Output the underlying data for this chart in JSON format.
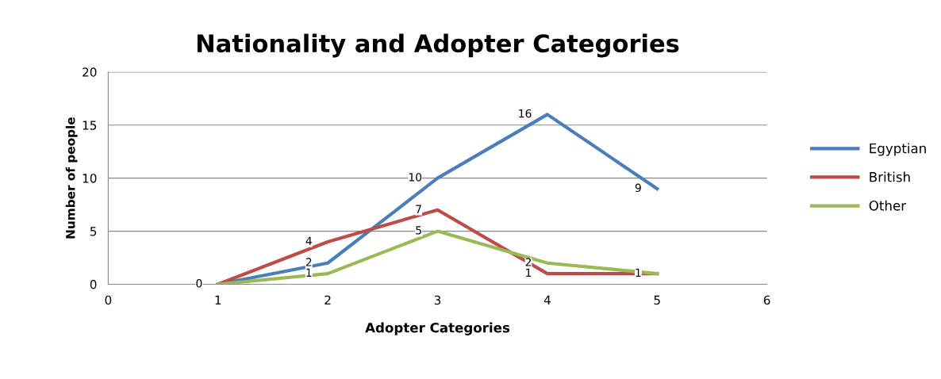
{
  "chart_data": {
    "type": "line",
    "title": "Nationality and Adopter Categories",
    "xlabel": "Adopter Categories",
    "ylabel": "Number of people",
    "x": [
      1,
      2,
      3,
      4,
      5
    ],
    "series": [
      {
        "name": "Egyptian",
        "color": "#4a7ebb",
        "values": [
          0,
          2,
          10,
          16,
          9
        ],
        "value_labels": [
          "0",
          "2",
          "10",
          "16",
          "9"
        ]
      },
      {
        "name": "British",
        "color": "#be4b48",
        "values": [
          0,
          4,
          7,
          1,
          1
        ],
        "value_labels": [
          null,
          "4",
          "7",
          "1",
          "1"
        ]
      },
      {
        "name": "Other",
        "color": "#98b954",
        "values": [
          0,
          1,
          5,
          2,
          1
        ],
        "value_labels": [
          null,
          "1",
          "5",
          "2",
          null
        ]
      }
    ],
    "xlim": [
      0,
      6
    ],
    "xticks": [
      0,
      1,
      2,
      3,
      4,
      5,
      6
    ],
    "ylim": [
      0,
      20
    ],
    "yticks": [
      0,
      5,
      10,
      15,
      20
    ],
    "grid": "y",
    "legend": "right",
    "marker": "none",
    "line_style": "solid"
  }
}
